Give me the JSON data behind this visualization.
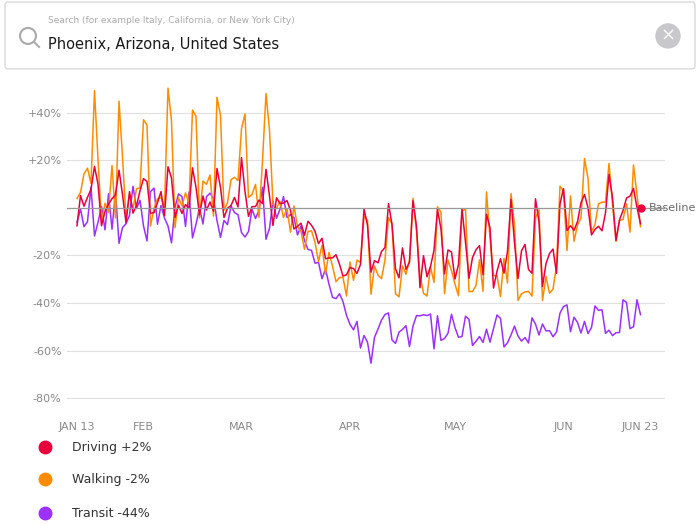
{
  "title_search": "Search (for example Italy, California, or New York City)",
  "title_location": "Phoenix, Arizona, United States",
  "baseline_label": "Baseline",
  "legend": [
    {
      "label": "Driving +2%",
      "color": "#E8003C"
    },
    {
      "label": "Walking -2%",
      "color": "#FF8C00"
    },
    {
      "label": "Transit -44%",
      "color": "#9B30FF"
    }
  ],
  "yticks": [
    40,
    20,
    0,
    -20,
    -40,
    -60,
    -80
  ],
  "ytick_labels": [
    "+40%",
    "+20%",
    "",
    "-20%",
    "-40%",
    "-60%",
    "-80%"
  ],
  "xtick_labels": [
    "JAN 13",
    "FEB",
    "MAR",
    "APR",
    "MAY",
    "JUN",
    "JUN 23"
  ],
  "xtick_positions": [
    0,
    19,
    47,
    78,
    108,
    139,
    161
  ],
  "ylim": [
    -88,
    52
  ],
  "xlim": [
    -3,
    168
  ],
  "background_color": "#ffffff",
  "grid_color": "#e0e0e0",
  "baseline_color": "#999999",
  "driving_color": "#E8003C",
  "walking_color": "#FF8C00",
  "transit_color": "#9B30FF",
  "n_points": 162,
  "search_hint_color": "#aaaaaa",
  "location_text_color": "#1a1a1a",
  "tick_color": "#888888",
  "legend_text_color": "#333333"
}
